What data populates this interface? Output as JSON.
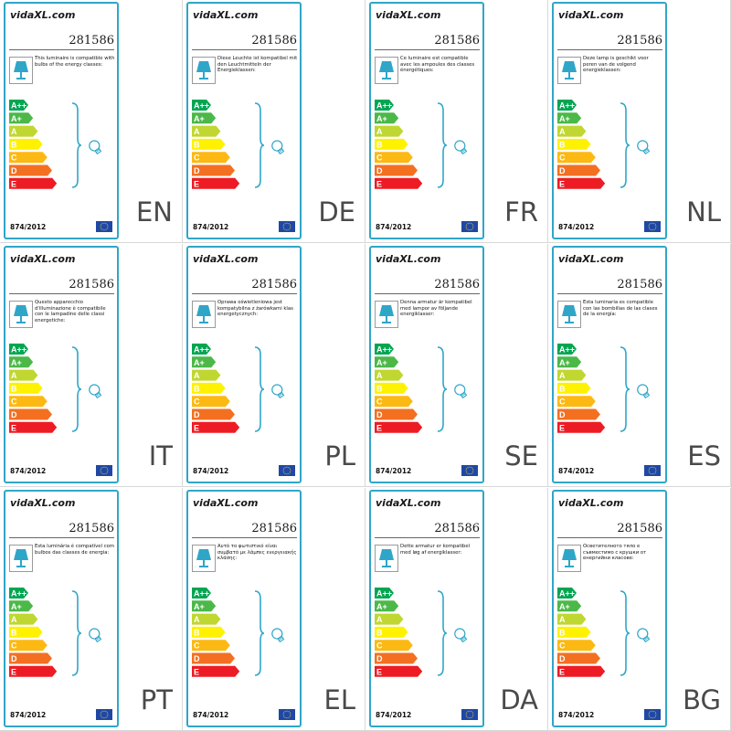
{
  "brand": {
    "text": "vidaXL.com"
  },
  "colors": {
    "border": "#2fa6c8",
    "lamp": "#2fa6c8",
    "eu_flag": "#1f48a6",
    "eu_stars": "#f6d31a",
    "classes": [
      "#00a651",
      "#4cb848",
      "#bfd730",
      "#fff200",
      "#fdb913",
      "#f37021",
      "#ed1c24"
    ]
  },
  "energy_classes": [
    "A++",
    "A+",
    "A",
    "B",
    "C",
    "D",
    "E"
  ],
  "labels": [
    {
      "product_no": "281586",
      "text": "This luminaire is compatible with bulbs of the energy classes:",
      "regulation": "874/2012",
      "lang": "EN"
    },
    {
      "product_no": "281586",
      "text": "Diese Leuchte ist kompatibel mit den Leuchtmitteln der Energieklassen:",
      "regulation": "874/2012",
      "lang": "DE"
    },
    {
      "product_no": "281586",
      "text": "Ce luminaire est compatible avec les ampoules des classes énergétiques:",
      "regulation": "874/2012",
      "lang": "FR"
    },
    {
      "product_no": "281586",
      "text": "Deze lamp is geschikt voor peren van de volgend energieklassen:",
      "regulation": "874/2012",
      "lang": "NL"
    },
    {
      "product_no": "281586",
      "text": "Questo apparecchio d'illuminazione è compatibile con le lampadine delle classi energetiche:",
      "regulation": "874/2012",
      "lang": "IT"
    },
    {
      "product_no": "281586",
      "text": "Oprawa oświetleniowa jest kompatybilna z żarówkami klas energetycznych:",
      "regulation": "874/2012",
      "lang": "PL"
    },
    {
      "product_no": "281586",
      "text": "Denna armatur är kompatibel med lampor av följande energiklasser:",
      "regulation": "874/2012",
      "lang": "SE"
    },
    {
      "product_no": "281586",
      "text": "Esta luminaria es compatible con las bombillas de las clases de la energía:",
      "regulation": "874/2012",
      "lang": "ES"
    },
    {
      "product_no": "281586",
      "text": "Esta luminária é compatível com bulbos das classes de energia:",
      "regulation": "874/2012",
      "lang": "PT"
    },
    {
      "product_no": "281586",
      "text": "Αυτό το φωτιστικό είναι συμβατό με λάμπες ενεργειακής κλάσης:",
      "regulation": "874/2012",
      "lang": "EL"
    },
    {
      "product_no": "281586",
      "text": "Dette armatur er kompatibel med løg af energiklasser:",
      "regulation": "874/2012",
      "lang": "DA"
    },
    {
      "product_no": "281586",
      "text": "Осветителното тяло е съвместимо с крушки от енергийни класове:",
      "regulation": "874/2012",
      "lang": "BG"
    }
  ]
}
